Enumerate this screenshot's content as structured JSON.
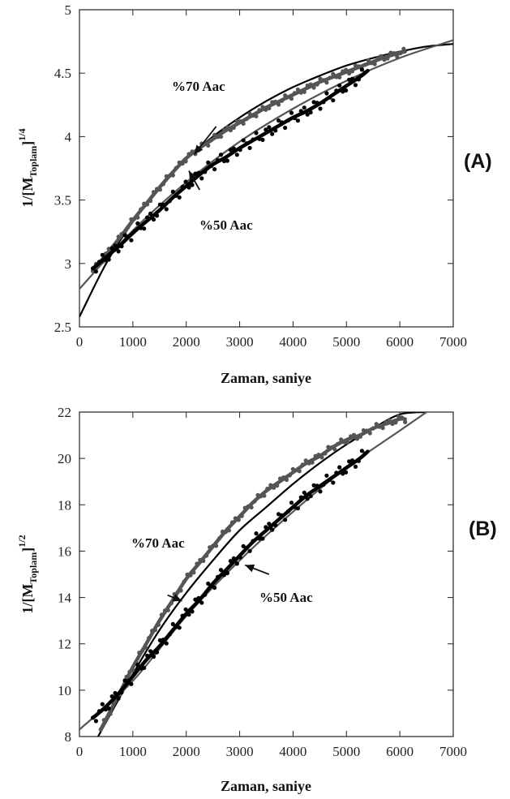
{
  "chart_data": [
    {
      "type": "scatter",
      "panel_label": "(A)",
      "xlabel": "Zaman, saniye",
      "ylabel": {
        "prefix": "1/[M",
        "sub": "Toplam",
        "suffix": "]",
        "sup": "1/4"
      },
      "xlim": [
        0,
        7000
      ],
      "ylim": [
        2.5,
        5
      ],
      "x_ticks": [
        0,
        1000,
        2000,
        3000,
        4000,
        5000,
        6000,
        7000
      ],
      "y_ticks": [
        2.5,
        3,
        3.5,
        4,
        4.5,
        5
      ],
      "series": [
        {
          "name": "%70 Aac",
          "color": "#555555",
          "x": [
            250,
            500,
            750,
            1000,
            1250,
            1500,
            1750,
            2000,
            2250,
            2500,
            2750,
            3000,
            3250,
            3500,
            3750,
            4000,
            4250,
            4500,
            4750,
            5000,
            5250,
            5500,
            5750,
            6000,
            6100
          ],
          "y": [
            2.94,
            3.07,
            3.2,
            3.34,
            3.47,
            3.6,
            3.72,
            3.83,
            3.91,
            3.98,
            4.05,
            4.11,
            4.17,
            4.23,
            4.28,
            4.33,
            4.38,
            4.43,
            4.47,
            4.51,
            4.55,
            4.59,
            4.63,
            4.66,
            4.67
          ],
          "fit": {
            "x": [
              0,
              500,
              1000,
              1500,
              2000,
              2500,
              3000,
              3500,
              4000,
              4500,
              5000,
              5500,
              6000,
              6500,
              7000
            ],
            "y": [
              2.58,
              3.0,
              3.33,
              3.6,
              3.82,
              4.0,
              4.15,
              4.28,
              4.39,
              4.48,
              4.56,
              4.62,
              4.67,
              4.71,
              4.73
            ]
          }
        },
        {
          "name": "%50 Aac",
          "color": "#000000",
          "x": [
            250,
            500,
            750,
            1000,
            1250,
            1500,
            1750,
            2000,
            2250,
            2500,
            2750,
            3000,
            3250,
            3500,
            3750,
            4000,
            4250,
            4500,
            4750,
            5000,
            5250,
            5400
          ],
          "y": [
            2.96,
            3.05,
            3.14,
            3.24,
            3.33,
            3.42,
            3.52,
            3.61,
            3.7,
            3.78,
            3.84,
            3.91,
            3.97,
            4.03,
            4.09,
            4.15,
            4.2,
            4.26,
            4.33,
            4.4,
            4.47,
            4.52
          ],
          "fit": {
            "x": [
              0,
              1000,
              2000,
              3000,
              4000,
              5000,
              6000,
              7000
            ],
            "y": [
              2.8,
              3.26,
              3.64,
              3.96,
              4.22,
              4.44,
              4.62,
              4.76
            ]
          }
        }
      ],
      "annotations": [
        {
          "text": "%70 Aac",
          "x": 2600,
          "y": 4.05
        },
        {
          "text": "%50 Aac",
          "x": 2050,
          "y": 3.62
        }
      ]
    },
    {
      "type": "scatter",
      "panel_label": "(B)",
      "xlabel": "Zaman, saniye",
      "ylabel": {
        "prefix": "1/[M",
        "sub": "Toplam",
        "suffix": "]",
        "sup": "1/2"
      },
      "xlim": [
        0,
        7000
      ],
      "ylim": [
        8,
        22
      ],
      "x_ticks": [
        0,
        1000,
        2000,
        3000,
        4000,
        5000,
        6000,
        7000
      ],
      "y_ticks": [
        8,
        10,
        12,
        14,
        16,
        18,
        20,
        22
      ],
      "series": [
        {
          "name": "%70 Aac",
          "color": "#555555",
          "x": [
            400,
            600,
            800,
            1000,
            1250,
            1500,
            1750,
            2000,
            2250,
            2500,
            2750,
            3000,
            3250,
            3500,
            3750,
            4000,
            4250,
            4500,
            4750,
            5000,
            5250,
            5500,
            5750,
            6000,
            6100
          ],
          "y": [
            8.3,
            9.2,
            10.1,
            11.0,
            12.0,
            13.0,
            13.9,
            14.8,
            15.5,
            16.2,
            16.9,
            17.5,
            18.1,
            18.6,
            19.0,
            19.4,
            19.8,
            20.1,
            20.5,
            20.8,
            21.0,
            21.3,
            21.5,
            21.7,
            21.7
          ],
          "fit": {
            "x": [
              350,
              1000,
              1500,
              2000,
              2500,
              3000,
              3500,
              4000,
              4500,
              5000,
              5500,
              6000,
              6500
            ],
            "y": [
              8.0,
              10.7,
              12.6,
              14.2,
              15.6,
              16.9,
              17.9,
              18.9,
              19.8,
              20.6,
              21.3,
              21.9,
              22.0
            ]
          }
        },
        {
          "name": "%50 Aac",
          "color": "#000000",
          "x": [
            250,
            500,
            750,
            1000,
            1250,
            1500,
            1750,
            2000,
            2250,
            2500,
            2750,
            3000,
            3250,
            3500,
            3750,
            4000,
            4250,
            4500,
            4750,
            5000,
            5250,
            5400
          ],
          "y": [
            8.8,
            9.3,
            9.9,
            10.6,
            11.3,
            11.9,
            12.6,
            13.3,
            13.9,
            14.6,
            15.2,
            15.8,
            16.4,
            16.9,
            17.4,
            17.9,
            18.4,
            18.8,
            19.2,
            19.6,
            20.0,
            20.3
          ],
          "fit": {
            "x": [
              0,
              1000,
              2000,
              3000,
              4000,
              5000,
              6000,
              6500
            ],
            "y": [
              8.3,
              10.4,
              13.2,
              15.6,
              17.7,
              19.6,
              21.2,
              22.0
            ]
          }
        }
      ],
      "annotations": [
        {
          "text": "%70 Aac",
          "x": 2050,
          "y": 14.8
        },
        {
          "text": "%50 Aac",
          "x": 3100,
          "y": 15.2
        }
      ]
    }
  ]
}
